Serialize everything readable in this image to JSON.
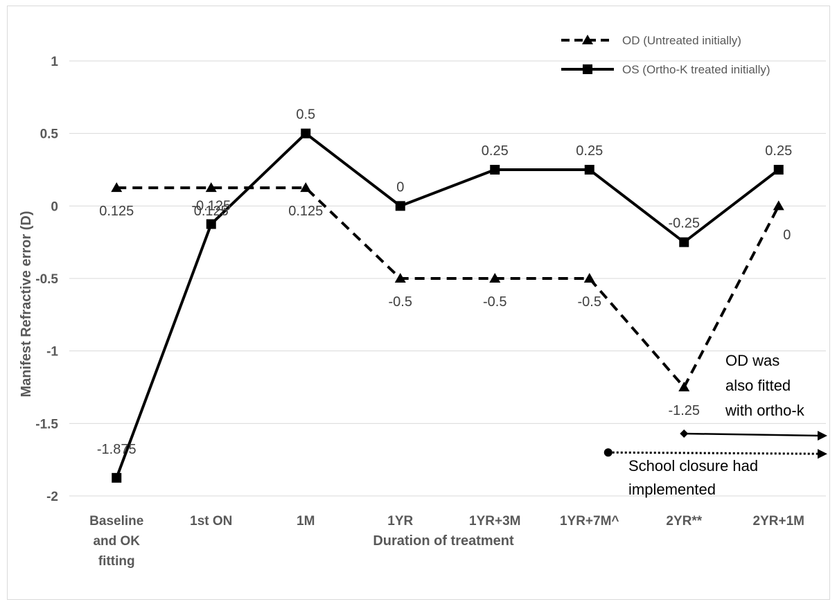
{
  "chart_data": {
    "type": "line",
    "title": "",
    "xlabel": "Duration of treatment",
    "ylabel": "Manifest Refractive error (D)",
    "ylim": [
      -2,
      1
    ],
    "yticks": [
      -2,
      -1.5,
      -1,
      -0.5,
      0,
      0.5,
      1
    ],
    "ytick_labels": [
      "-2",
      "-1.5",
      "-1",
      "-0.5",
      "0",
      "0.5",
      "1"
    ],
    "grid": "horizontal",
    "legend_position": "top-right",
    "categories": [
      [
        "Baseline",
        "and OK",
        "fitting"
      ],
      [
        "1st ON"
      ],
      [
        "1M"
      ],
      [
        "1YR"
      ],
      [
        "1YR+3M"
      ],
      [
        "1YR+7M^"
      ],
      [
        "2YR**"
      ],
      [
        "2YR+1M"
      ]
    ],
    "series": [
      {
        "name": "OD (Untreated initially)",
        "style": "dashed",
        "marker": "triangle",
        "color": "#000000",
        "values": [
          0.125,
          0.125,
          0.125,
          -0.5,
          -0.5,
          -0.5,
          -1.25,
          0
        ],
        "labels": [
          "0.125",
          "0.125",
          "0.125",
          "-0.5",
          "-0.5",
          "-0.5",
          "-1.25",
          "0"
        ]
      },
      {
        "name": "OS (Ortho-K treated initially)",
        "style": "solid",
        "marker": "square",
        "color": "#000000",
        "values": [
          -1.875,
          -0.125,
          0.5,
          0,
          0.25,
          0.25,
          -0.25,
          0.25
        ],
        "labels": [
          "-1.875",
          "-0.125",
          "0.5",
          "0",
          "0.25",
          "0.25",
          "-0.25",
          "0.25"
        ]
      }
    ],
    "annotations": [
      {
        "lines": [
          "OD was",
          "also fitted",
          "with ortho-k"
        ],
        "arrow": "solid",
        "from_category": 6,
        "y_value": -1.57
      },
      {
        "lines": [
          "School closure had",
          "implemented"
        ],
        "arrow": "dotted",
        "from_category": 5,
        "y_value": -1.7
      }
    ]
  }
}
